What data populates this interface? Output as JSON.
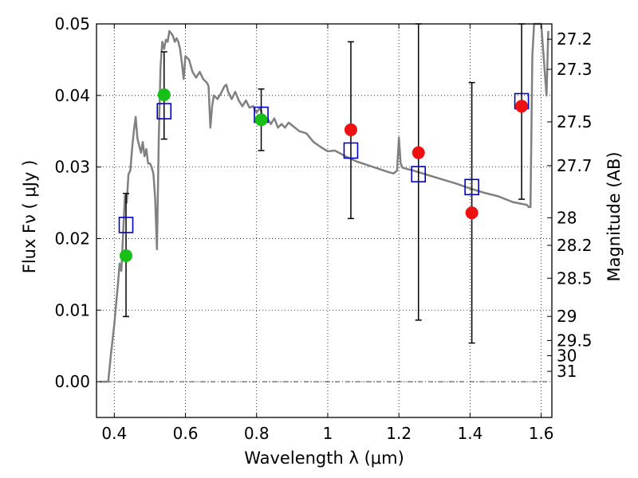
{
  "chart_data": {
    "type": "scatter",
    "title": "",
    "xlabel": "Wavelength  λ (μm)",
    "ylabel": "Flux  Fν  ( μJy )",
    "ylabel_right": "Magnitude (AB)",
    "xlim": [
      0.35,
      1.63
    ],
    "ylim": [
      -0.005,
      0.05
    ],
    "grid": true,
    "legend": "none",
    "x_ticks": [
      {
        "value": 0.4,
        "label": "0.4"
      },
      {
        "value": 0.6,
        "label": "0.6"
      },
      {
        "value": 0.8,
        "label": "0.8"
      },
      {
        "value": 1.0,
        "label": "1"
      },
      {
        "value": 1.2,
        "label": "1.2"
      },
      {
        "value": 1.4,
        "label": "1.4"
      },
      {
        "value": 1.6,
        "label": "1.6"
      }
    ],
    "y_ticks": [
      {
        "value": 0.0,
        "label": "0.00"
      },
      {
        "value": 0.01,
        "label": "0.01"
      },
      {
        "value": 0.02,
        "label": "0.02"
      },
      {
        "value": 0.03,
        "label": "0.03"
      },
      {
        "value": 0.04,
        "label": "0.04"
      },
      {
        "value": 0.05,
        "label": "0.05"
      }
    ],
    "mag_ticks": [
      {
        "mag": 27.2,
        "label": "27.2"
      },
      {
        "mag": 27.3,
        "label": "27.3"
      },
      {
        "mag": 27.5,
        "label": "27.5"
      },
      {
        "mag": 27.7,
        "label": "27.7"
      },
      {
        "mag": 28.0,
        "label": "28"
      },
      {
        "mag": 28.2,
        "label": "28.2"
      },
      {
        "mag": 28.5,
        "label": "28.5"
      },
      {
        "mag": 29.0,
        "label": "29"
      },
      {
        "mag": 29.5,
        "label": "29.5"
      },
      {
        "mag": 30.0,
        "label": "30"
      },
      {
        "mag": 31.0,
        "label": "31"
      }
    ],
    "zero_line": 0.0,
    "model_sed": {
      "color": "#808080",
      "x": [
        0.36,
        0.383,
        0.39,
        0.4,
        0.41,
        0.415,
        0.42,
        0.425,
        0.43,
        0.435,
        0.44,
        0.445,
        0.45,
        0.455,
        0.46,
        0.465,
        0.47,
        0.475,
        0.48,
        0.485,
        0.49,
        0.495,
        0.5,
        0.505,
        0.51,
        0.515,
        0.52,
        0.525,
        0.53,
        0.535,
        0.54,
        0.545,
        0.55,
        0.555,
        0.56,
        0.565,
        0.57,
        0.575,
        0.58,
        0.585,
        0.59,
        0.595,
        0.6,
        0.61,
        0.62,
        0.63,
        0.64,
        0.65,
        0.66,
        0.665,
        0.67,
        0.675,
        0.68,
        0.69,
        0.7,
        0.71,
        0.715,
        0.72,
        0.73,
        0.74,
        0.75,
        0.76,
        0.77,
        0.78,
        0.79,
        0.8,
        0.81,
        0.82,
        0.83,
        0.84,
        0.85,
        0.86,
        0.87,
        0.88,
        0.89,
        0.9,
        0.92,
        0.94,
        0.96,
        0.98,
        1.0,
        1.02,
        1.05,
        1.08,
        1.11,
        1.14,
        1.17,
        1.185,
        1.195,
        1.2,
        1.205,
        1.21,
        1.24,
        1.28,
        1.32,
        1.36,
        1.4,
        1.44,
        1.48,
        1.52,
        1.55,
        1.56,
        1.565,
        1.57,
        1.575,
        1.58,
        1.59,
        1.6,
        1.615,
        1.62
      ],
      "y": [
        0.0,
        0.0,
        0.0035,
        0.008,
        0.0135,
        0.0165,
        0.0155,
        0.021,
        0.026,
        0.025,
        0.029,
        0.0295,
        0.0325,
        0.035,
        0.037,
        0.034,
        0.033,
        0.032,
        0.0335,
        0.0315,
        0.0325,
        0.0305,
        0.0305,
        0.03,
        0.029,
        0.0255,
        0.0185,
        0.034,
        0.044,
        0.0475,
        0.0465,
        0.0478,
        0.0475,
        0.049,
        0.0487,
        0.0483,
        0.0475,
        0.048,
        0.0475,
        0.0465,
        0.0445,
        0.0423,
        0.0455,
        0.045,
        0.0433,
        0.0425,
        0.0433,
        0.0423,
        0.0418,
        0.0413,
        0.0355,
        0.0385,
        0.04,
        0.0395,
        0.0403,
        0.0413,
        0.0415,
        0.0405,
        0.0395,
        0.0405,
        0.0393,
        0.0385,
        0.0393,
        0.0383,
        0.0385,
        0.0376,
        0.0383,
        0.0365,
        0.0368,
        0.036,
        0.0368,
        0.0355,
        0.036,
        0.0355,
        0.0362,
        0.0358,
        0.035,
        0.0347,
        0.0335,
        0.0328,
        0.0322,
        0.0323,
        0.0315,
        0.0308,
        0.0303,
        0.0298,
        0.0293,
        0.0291,
        0.0295,
        0.0341,
        0.0305,
        0.0299,
        0.0295,
        0.0289,
        0.0283,
        0.0277,
        0.027,
        0.0264,
        0.0259,
        0.0251,
        0.0248,
        0.0247,
        0.0244,
        0.0244,
        0.0455,
        0.05,
        0.05,
        0.05,
        0.04,
        0.049
      ]
    },
    "series": [
      {
        "name": "",
        "marker": "open-square",
        "color": "#0000cc",
        "x": [
          0.433,
          0.54,
          0.813,
          1.065,
          1.255,
          1.405,
          1.545
        ],
        "y": [
          0.0219,
          0.0378,
          0.0373,
          0.0323,
          0.029,
          0.0272,
          0.0392
        ]
      },
      {
        "name": "",
        "marker": "filled-circle",
        "color": "#16c016",
        "x": [
          0.433,
          0.54,
          0.813
        ],
        "y": [
          0.0176,
          0.0401,
          0.0366
        ],
        "yerr_low": [
          0.0085,
          0.0062,
          0.0043
        ],
        "yerr_high": [
          0.0087,
          0.006,
          0.0043
        ]
      },
      {
        "name": "",
        "marker": "filled-circle",
        "color": "#ee1111",
        "x": [
          1.065,
          1.255,
          1.405,
          1.545
        ],
        "y": [
          0.0352,
          0.032,
          0.0236,
          0.0385
        ],
        "yerr_low": [
          0.0124,
          0.0234,
          0.0182,
          0.013
        ],
        "yerr_high": [
          0.0123,
          0.018,
          0.0182,
          0.0115
        ]
      }
    ]
  }
}
